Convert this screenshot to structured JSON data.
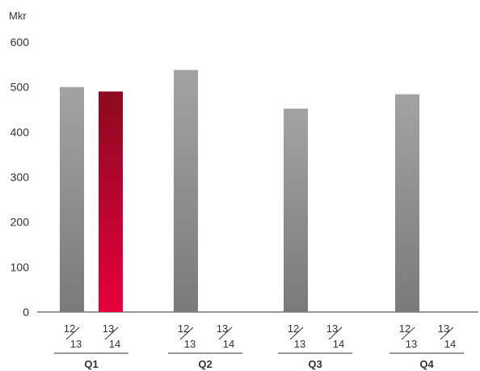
{
  "chart_data": {
    "type": "bar",
    "unit_label": "Mkr",
    "y_ticks": [
      0,
      100,
      200,
      300,
      400,
      500,
      600
    ],
    "ylim": [
      0,
      600
    ],
    "grid": false,
    "quarters": [
      {
        "label": "Q1",
        "bars": [
          {
            "top": "12",
            "bottom": "13",
            "value": 500,
            "highlight": false
          },
          {
            "top": "13",
            "bottom": "14",
            "value": 490,
            "highlight": true
          }
        ]
      },
      {
        "label": "Q2",
        "bars": [
          {
            "top": "12",
            "bottom": "13",
            "value": 538,
            "highlight": false
          },
          {
            "top": "13",
            "bottom": "14",
            "value": null,
            "highlight": false
          }
        ]
      },
      {
        "label": "Q3",
        "bars": [
          {
            "top": "12",
            "bottom": "13",
            "value": 452,
            "highlight": false
          },
          {
            "top": "13",
            "bottom": "14",
            "value": null,
            "highlight": false
          }
        ]
      },
      {
        "label": "Q4",
        "bars": [
          {
            "top": "12",
            "bottom": "13",
            "value": 484,
            "highlight": false
          },
          {
            "top": "13",
            "bottom": "14",
            "value": null,
            "highlight": false
          }
        ]
      }
    ],
    "colors": {
      "gray_top": "#a3a3a3",
      "gray_bottom": "#7a7a7a",
      "red_top": "#8c0a20",
      "red_bottom": "#e6003c",
      "axis": "#333333",
      "text": "#333333"
    }
  }
}
